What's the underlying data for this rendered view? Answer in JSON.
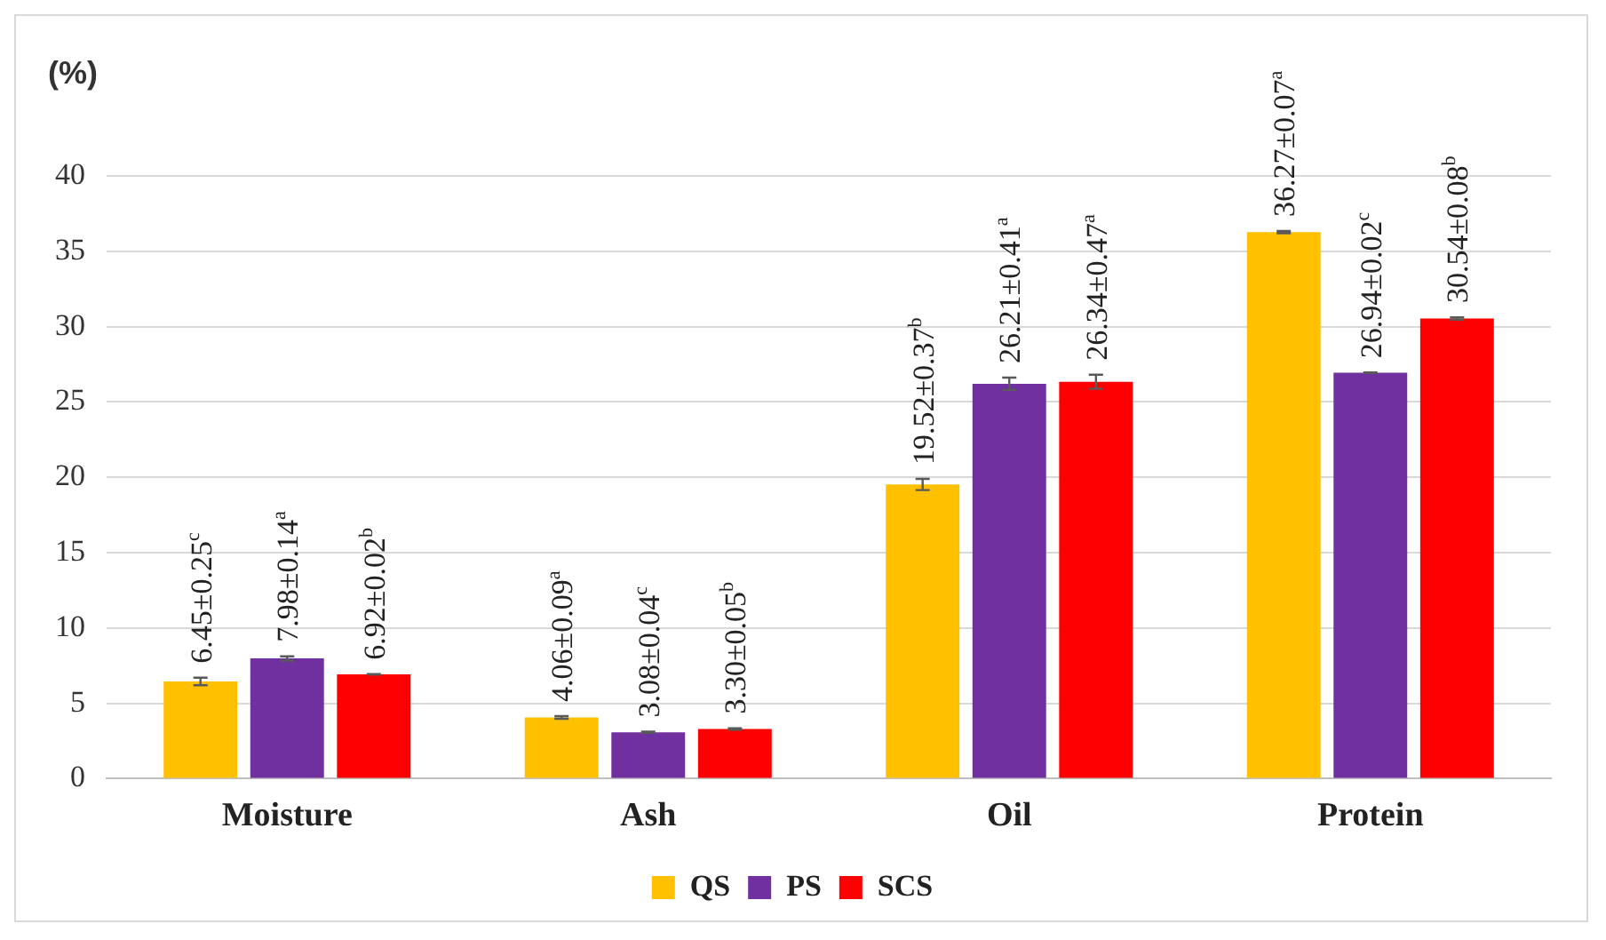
{
  "chart_data": {
    "type": "bar",
    "ylabel": "(%)",
    "categories": [
      "Moisture",
      "Ash",
      "Oil",
      "Protein"
    ],
    "series": [
      {
        "name": "QS",
        "color": "#ffc000",
        "values": [
          6.45,
          4.06,
          19.52,
          36.27
        ],
        "errors": [
          0.25,
          0.09,
          0.37,
          0.07
        ],
        "value_labels": [
          "6.45±0.25$^{c}$",
          "4.06±0.09$^{a}$",
          "19.52±0.37$^{b}$",
          "36.27±0.07$^{a}$"
        ]
      },
      {
        "name": "PS",
        "color": "#7030a0",
        "values": [
          7.98,
          3.08,
          26.21,
          26.94
        ],
        "errors": [
          0.14,
          0.04,
          0.41,
          0.02
        ],
        "value_labels": [
          "7.98±0.14$^{a}$",
          "3.08±0.04$^{c}$",
          "26.21±0.41$^{a}$",
          "26.94±0.02$^{c}$"
        ]
      },
      {
        "name": "SCS",
        "color": "#ff0000",
        "values": [
          6.92,
          3.3,
          26.34,
          30.54
        ],
        "errors": [
          0.02,
          0.05,
          0.47,
          0.08
        ],
        "value_labels": [
          "6.92±0.02$^{b}$",
          "3.30±0.05$^{b}$",
          "26.34±0.47$^{a}$",
          "30.54±0.08$^{b}$"
        ]
      }
    ],
    "ylim": [
      0,
      40
    ],
    "yticks": [
      0,
      5,
      10,
      15,
      20,
      25,
      30,
      35,
      40
    ],
    "grid": "y",
    "legend": "bottom"
  }
}
